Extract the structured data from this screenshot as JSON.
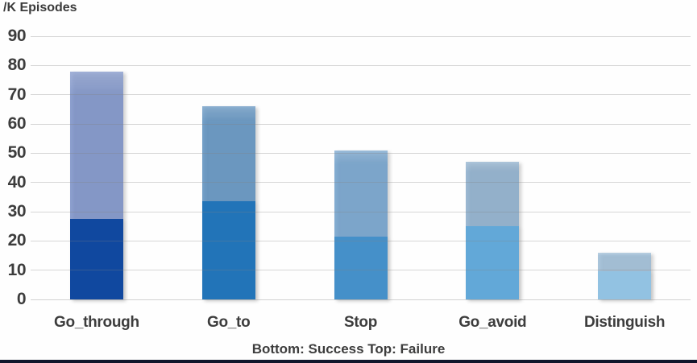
{
  "header": {
    "axis_title": "/K Episodes"
  },
  "footer": {
    "caption": "Bottom: Success  Top: Failure"
  },
  "colors": {
    "text": "#3d3d3d",
    "gridline": "#d2d2d2",
    "background": "#fefefe",
    "bottom_border": "#10152b"
  },
  "chart_data": {
    "type": "bar",
    "stacked": true,
    "title": "",
    "ylabel": "/K Episodes",
    "xlabel": "Bottom: Success  Top: Failure",
    "categories": [
      "Go_through",
      "Go_to",
      "Stop",
      "Go_avoid",
      "Distinguish"
    ],
    "series": [
      {
        "name": "Success",
        "position": "bottom",
        "values": [
          27.5,
          33.5,
          21.5,
          25,
          9.5
        ]
      },
      {
        "name": "Failure",
        "position": "top",
        "values": [
          50.5,
          32.5,
          29.5,
          22,
          6.5
        ]
      }
    ],
    "stack_totals": [
      78,
      66,
      51,
      47,
      16
    ],
    "ylim": [
      0,
      90
    ],
    "yticks": [
      0,
      10,
      20,
      30,
      40,
      50,
      60,
      70,
      80,
      90
    ],
    "grid": true,
    "legend_position": "none",
    "segment_colors": {
      "success": [
        "#10489f",
        "#2274b8",
        "#4590c9",
        "#62a8d8",
        "#92c2e2"
      ],
      "failure": [
        "#8da0cf",
        "#74a0c8",
        "#85aed3",
        "#9cb9d3",
        "#abc6dc"
      ]
    }
  }
}
